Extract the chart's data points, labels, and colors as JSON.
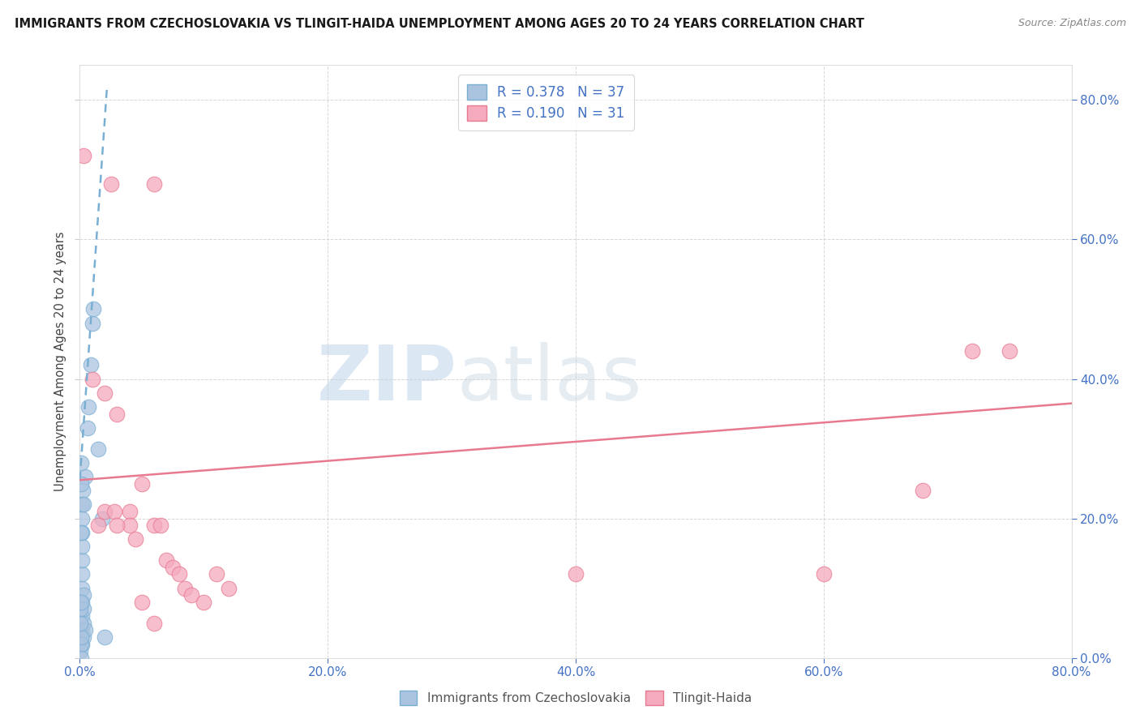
{
  "title": "IMMIGRANTS FROM CZECHOSLOVAKIA VS TLINGIT-HAIDA UNEMPLOYMENT AMONG AGES 20 TO 24 YEARS CORRELATION CHART",
  "source": "Source: ZipAtlas.com",
  "ylabel": "Unemployment Among Ages 20 to 24 years",
  "legend1_label": "R = 0.378   N = 37",
  "legend2_label": "R = 0.190   N = 31",
  "series1_color": "#aac4e0",
  "series2_color": "#f5aabe",
  "trendline1_color": "#7aafd4",
  "trendline2_color": "#e87a90",
  "xlim": [
    0.0,
    0.8
  ],
  "ylim": [
    0.0,
    0.85
  ],
  "blue_dots": [
    [
      0.0015,
      0.02
    ],
    [
      0.002,
      0.04
    ],
    [
      0.002,
      0.06
    ],
    [
      0.002,
      0.08
    ],
    [
      0.002,
      0.1
    ],
    [
      0.002,
      0.12
    ],
    [
      0.002,
      0.14
    ],
    [
      0.002,
      0.16
    ],
    [
      0.002,
      0.18
    ],
    [
      0.002,
      0.2
    ],
    [
      0.002,
      0.22
    ],
    [
      0.0025,
      0.24
    ],
    [
      0.003,
      0.03
    ],
    [
      0.003,
      0.05
    ],
    [
      0.003,
      0.07
    ],
    [
      0.003,
      0.09
    ],
    [
      0.003,
      0.22
    ],
    [
      0.004,
      0.26
    ],
    [
      0.004,
      0.04
    ],
    [
      0.006,
      0.33
    ],
    [
      0.007,
      0.36
    ],
    [
      0.009,
      0.42
    ],
    [
      0.01,
      0.48
    ],
    [
      0.011,
      0.5
    ],
    [
      0.0005,
      0.01
    ],
    [
      0.0008,
      0.02
    ],
    [
      0.001,
      0.03
    ],
    [
      0.0012,
      0.25
    ],
    [
      0.0012,
      0.28
    ],
    [
      0.015,
      0.3
    ],
    [
      0.018,
      0.2
    ],
    [
      0.02,
      0.03
    ],
    [
      0.0005,
      0.05
    ],
    [
      0.0005,
      0.07
    ],
    [
      0.001,
      0.08
    ],
    [
      0.001,
      0.18
    ],
    [
      0.0008,
      0.0
    ]
  ],
  "pink_dots": [
    [
      0.003,
      0.72
    ],
    [
      0.025,
      0.68
    ],
    [
      0.06,
      0.68
    ],
    [
      0.01,
      0.4
    ],
    [
      0.02,
      0.38
    ],
    [
      0.03,
      0.35
    ],
    [
      0.05,
      0.25
    ],
    [
      0.04,
      0.21
    ],
    [
      0.04,
      0.19
    ],
    [
      0.045,
      0.17
    ],
    [
      0.06,
      0.19
    ],
    [
      0.065,
      0.19
    ],
    [
      0.07,
      0.14
    ],
    [
      0.075,
      0.13
    ],
    [
      0.08,
      0.12
    ],
    [
      0.085,
      0.1
    ],
    [
      0.09,
      0.09
    ],
    [
      0.1,
      0.08
    ],
    [
      0.11,
      0.12
    ],
    [
      0.12,
      0.1
    ],
    [
      0.015,
      0.19
    ],
    [
      0.02,
      0.21
    ],
    [
      0.028,
      0.21
    ],
    [
      0.03,
      0.19
    ],
    [
      0.05,
      0.08
    ],
    [
      0.06,
      0.05
    ],
    [
      0.4,
      0.12
    ],
    [
      0.6,
      0.12
    ],
    [
      0.68,
      0.24
    ],
    [
      0.72,
      0.44
    ],
    [
      0.75,
      0.44
    ]
  ],
  "blue_trend_x": [
    0.0,
    0.022
  ],
  "blue_trend_y": [
    0.255,
    0.82
  ],
  "pink_trend_x": [
    0.0,
    0.8
  ],
  "pink_trend_y": [
    0.255,
    0.365
  ]
}
